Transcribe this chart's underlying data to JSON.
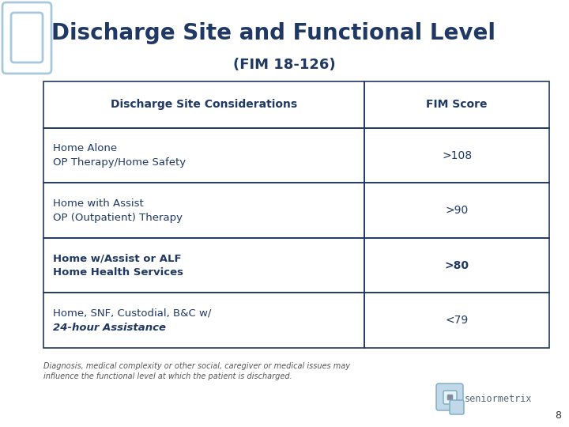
{
  "title": "Discharge Site and Functional Level",
  "subtitle": "(FIM 18-126)",
  "title_color": "#1F3864",
  "header_col1": "Discharge Site Considerations",
  "header_col2": "FIM Score",
  "rows": [
    {
      "col1_lines": [
        "Home Alone",
        "OP Therapy/Home Safety"
      ],
      "col1_bold": [
        false,
        false
      ],
      "col1_italic": [
        false,
        false
      ],
      "col2": ">108",
      "col2_bold": false
    },
    {
      "col1_lines": [
        "Home with Assist",
        "OP (Outpatient) Therapy"
      ],
      "col1_bold": [
        false,
        false
      ],
      "col1_italic": [
        false,
        false
      ],
      "col2": ">90",
      "col2_bold": false
    },
    {
      "col1_lines": [
        "Home w/Assist or ALF",
        "Home Health Services"
      ],
      "col1_bold": [
        true,
        true
      ],
      "col1_italic": [
        false,
        false
      ],
      "col2": ">80",
      "col2_bold": true
    },
    {
      "col1_lines": [
        "Home, SNF, Custodial, B&C w/",
        "24-hour Assistance"
      ],
      "col1_bold": [
        false,
        true
      ],
      "col1_italic": [
        false,
        true
      ],
      "col2": "<79",
      "col2_bold": false
    }
  ],
  "footnote_line1": "Diagnosis, medical complexity or other social, caregiver or medical issues may",
  "footnote_line2": "influence the functional level at which the patient is discharged.",
  "page_number": "8",
  "text_color": "#1F3864",
  "bg_color": "#FFFFFF",
  "deco_color": "#A8C8DC",
  "border_color": "#1F3864",
  "footnote_color": "#555555",
  "page_color": "#333333"
}
